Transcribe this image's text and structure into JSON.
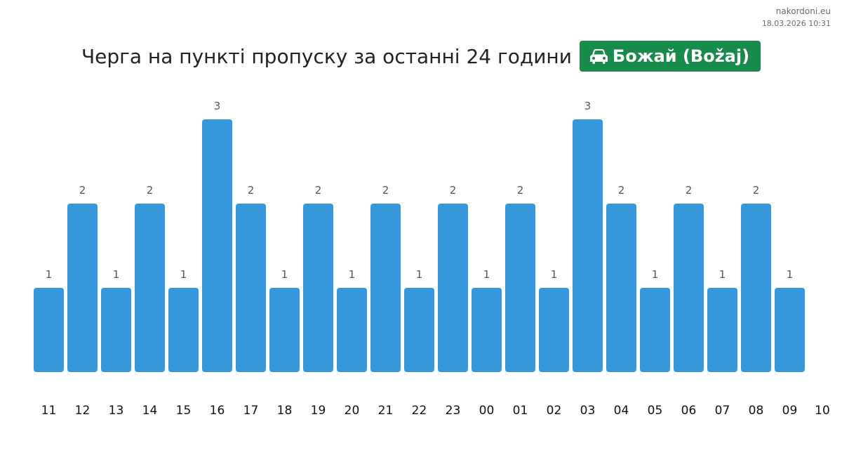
{
  "site": {
    "name": "nakordoni.eu",
    "timestamp": "18.03.2026 10:31"
  },
  "header": {
    "title": "Черга на пункті пропуску за останні 24 години",
    "checkpoint": "Божай (Božaj)",
    "checkpoint_icon": "car-icon",
    "badge_color": "#188a4c"
  },
  "chart_data": {
    "type": "bar",
    "categories": [
      "11",
      "12",
      "13",
      "14",
      "15",
      "16",
      "17",
      "18",
      "19",
      "20",
      "21",
      "22",
      "23",
      "00",
      "01",
      "02",
      "03",
      "04",
      "05",
      "06",
      "07",
      "08",
      "09"
    ],
    "values": [
      1,
      2,
      1,
      2,
      1,
      3,
      2,
      1,
      2,
      1,
      2,
      1,
      2,
      1,
      2,
      1,
      3,
      2,
      1,
      2,
      1,
      2,
      1
    ],
    "extra_tick_label": "10",
    "ylim": [
      0,
      3
    ],
    "bar_color": "#3797db",
    "grid": false,
    "legend": "none",
    "data_labels": true
  }
}
